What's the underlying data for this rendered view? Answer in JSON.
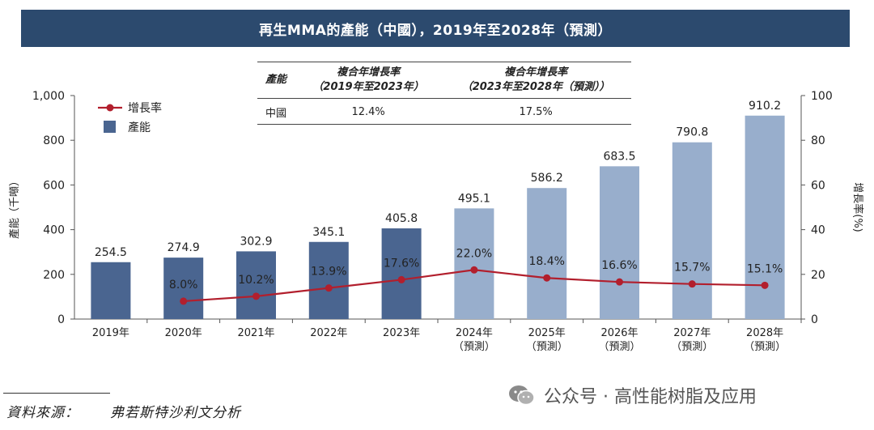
{
  "title": "再生MMA的產能（中國），2019年至2028年（預測）",
  "cagr_table": {
    "headers": [
      "產能",
      "複合年增長率（2019年至2023年）",
      "複合年增長率（2023年至2028年（預測））"
    ],
    "header_lines": [
      [
        "產能"
      ],
      [
        "複合年增長率",
        "（2019年至2023年）"
      ],
      [
        "複合年增長率",
        "（2023年至2028年（預測））"
      ]
    ],
    "rows": [
      [
        "中國",
        "12.4%",
        "17.5%"
      ]
    ]
  },
  "chart_data": {
    "type": "bar+line",
    "categories": [
      "2019年",
      "2020年",
      "2021年",
      "2022年",
      "2023年",
      "2024年",
      "2025年",
      "2026年",
      "2027年",
      "2028年"
    ],
    "category_sublabels": [
      "",
      "",
      "",
      "",
      "",
      "（預測）",
      "（預測）",
      "（預測）",
      "（預測）",
      "（預測）"
    ],
    "series": [
      {
        "name": "產能",
        "type": "bar",
        "axis": "left",
        "values": [
          254.5,
          274.9,
          302.9,
          345.1,
          405.8,
          495.1,
          586.2,
          683.5,
          790.8,
          910.2
        ],
        "labels": [
          "254.5",
          "274.9",
          "302.9",
          "345.1",
          "405.8",
          "495.1",
          "586.2",
          "683.5",
          "790.8",
          "910.2"
        ],
        "forecast_from_index": 5
      },
      {
        "name": "增長率",
        "type": "line",
        "axis": "right",
        "values": [
          null,
          8.0,
          10.2,
          13.9,
          17.6,
          22.0,
          18.4,
          16.6,
          15.7,
          15.1
        ],
        "labels": [
          "",
          "8.0%",
          "10.2%",
          "13.9%",
          "17.6%",
          "22.0%",
          "18.4%",
          "16.6%",
          "15.7%",
          "15.1%"
        ]
      }
    ],
    "left_axis": {
      "label": "產能（千噸）",
      "min": 0,
      "max": 1000,
      "ticks": [
        0,
        200,
        400,
        600,
        800,
        1000
      ],
      "tick_labels": [
        "0",
        "200",
        "400",
        "600",
        "800",
        "1,000"
      ]
    },
    "right_axis": {
      "label": "增長率(%)",
      "min": 0,
      "max": 100,
      "ticks": [
        0,
        20,
        40,
        60,
        80,
        100
      ],
      "tick_labels": [
        "0",
        "20",
        "40",
        "60",
        "80",
        "100"
      ]
    },
    "legend": [
      {
        "name": "增長率",
        "marker": "line-dot"
      },
      {
        "name": "產能",
        "marker": "square"
      }
    ],
    "legend_position": "top-left",
    "colors": {
      "bar_actual": "#4a6590",
      "bar_forecast": "#98aecc",
      "line": "#b21f2d",
      "axis": "#555555",
      "text": "#222222"
    }
  },
  "footer": {
    "source_label": "資料來源：",
    "source_value": "弗若斯特沙利文分析"
  },
  "watermark": {
    "icon": "wechat-icon",
    "text": "公众号 · 高性能树脂及应用"
  }
}
